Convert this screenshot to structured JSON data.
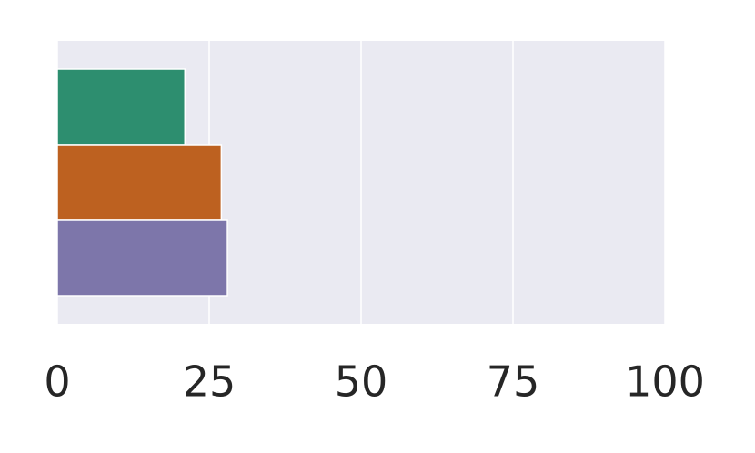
{
  "chart_data": {
    "type": "barh",
    "categories": [
      null,
      null,
      null
    ],
    "values": [
      21,
      27,
      28
    ],
    "colors": [
      "#2d8e6f",
      "#bd6120",
      "#7d76aa"
    ],
    "xlim": [
      0,
      100
    ],
    "xticks": [
      0,
      25,
      50,
      75,
      100
    ],
    "grid": true
  }
}
